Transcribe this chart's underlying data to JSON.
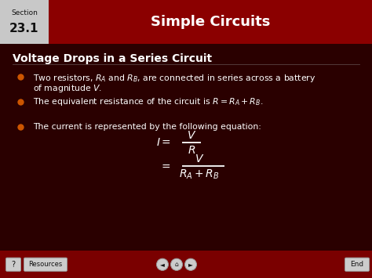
{
  "title": "Simple Circuits",
  "slide_title": "Voltage Drops in a Series Circuit",
  "bullet1": "Two resistors, $R_A$ and $R_B$, are connected in series across a battery",
  "bullet1b": "of magnitude $V$.",
  "bullet2": "The equivalent resistance of the circuit is $R = R_A + R_B$.",
  "bullet3": "The current is represented by the following equation:",
  "bg_dark": "#2a0000",
  "bg_header": "#8b0000",
  "section_bg": "#c8c8c8",
  "section_text": "#111111",
  "white": "#ffffff",
  "bullet_dot_color": "#cc5500",
  "footer_bg": "#7a0000",
  "footer_btn_bg": "#cccccc",
  "footer_btn_border": "#999999"
}
